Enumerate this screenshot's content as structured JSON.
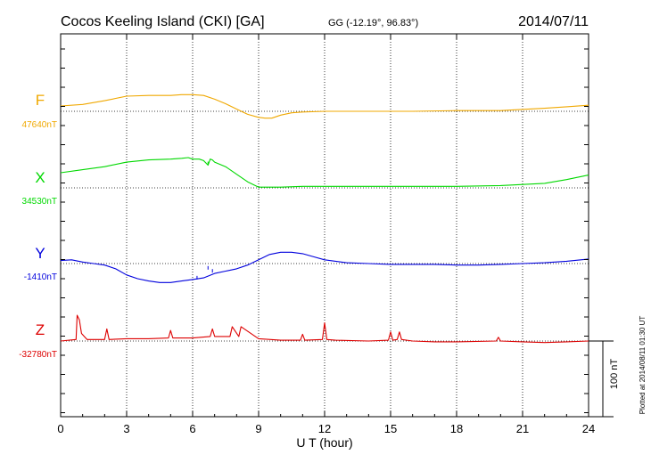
{
  "header": {
    "station": "Cocos Keeling Island (CKI)  [GA]",
    "coords": "GG (-12.19°,  96.83°)",
    "date": "2014/07/11"
  },
  "footer_note": "Plotted at 2014/08/11 01:30 UT",
  "chart_data": {
    "type": "line",
    "title": "Cocos Keeling Island (CKI)  [GA]",
    "xlabel": "U T (hour)",
    "xlim": [
      0,
      24
    ],
    "x_ticks": [
      "0",
      "3",
      "6",
      "9",
      "12",
      "15",
      "18",
      "21",
      "24"
    ],
    "grid": true,
    "scale_bar": {
      "label": "100 nT",
      "value_nT": 100
    },
    "series": [
      {
        "name": "F",
        "baseline_label": "47640nT",
        "color": "#f0a800",
        "x": [
          0,
          1,
          2,
          3,
          4,
          5,
          5.5,
          6,
          6.5,
          7,
          7.5,
          8,
          8.5,
          9,
          9.3,
          9.6,
          10,
          10.5,
          11,
          12,
          14,
          16,
          18,
          20,
          22,
          23,
          24
        ],
        "y": [
          7,
          9,
          14,
          20,
          21,
          21,
          22,
          22,
          21,
          16,
          10,
          3,
          -4,
          -8,
          -9,
          -9,
          -5,
          -2,
          -1,
          0,
          0,
          0,
          1,
          1,
          4,
          6,
          8
        ]
      },
      {
        "name": "X",
        "baseline_label": "34530nT",
        "color": "#00d800",
        "x": [
          0,
          1,
          2,
          3,
          4,
          5,
          5.5,
          5.8,
          6,
          6.3,
          6.5,
          6.7,
          6.8,
          6.9,
          7,
          7.5,
          8,
          8.5,
          9,
          9.5,
          10,
          11,
          12,
          14,
          16,
          18,
          20,
          22,
          23,
          24
        ],
        "y": [
          20,
          24,
          28,
          34,
          37,
          38,
          39,
          40,
          38,
          38,
          36,
          30,
          38,
          37,
          34,
          28,
          18,
          8,
          1,
          1,
          1,
          2,
          2,
          2,
          2,
          2,
          3,
          6,
          11,
          17
        ],
        "spikes": [
          [
            6.7,
            30
          ]
        ]
      },
      {
        "name": "Y",
        "baseline_label": "-1410nT",
        "color": "#0000dd",
        "x": [
          0,
          0.5,
          1,
          1.5,
          2,
          2.5,
          3,
          3.5,
          4,
          4.5,
          5,
          5.5,
          6,
          6.5,
          7,
          7.5,
          8,
          8.5,
          9,
          9.5,
          10,
          10.5,
          11,
          11.5,
          12,
          13,
          14,
          15,
          16,
          17,
          18,
          19,
          20,
          21,
          22,
          23,
          24
        ],
        "y": [
          4,
          5,
          2,
          0,
          -2,
          -7,
          -15,
          -20,
          -23,
          -25,
          -25,
          -23,
          -21,
          -19,
          -13,
          -10,
          -7,
          -2,
          5,
          12,
          15,
          15,
          13,
          9,
          5,
          1,
          0,
          -1,
          -1,
          -1,
          -2,
          -2,
          -1,
          0,
          1,
          3,
          6
        ],
        "spikes": [
          [
            6.2,
            -21
          ],
          [
            6.7,
            -8
          ],
          [
            6.9,
            -12
          ]
        ]
      },
      {
        "name": "Z",
        "baseline_label": "-32780nT",
        "color": "#dd0000",
        "x": [
          0,
          0.7,
          0.75,
          0.85,
          0.95,
          1.2,
          2,
          2.1,
          2.2,
          3,
          4,
          4.9,
          5,
          5.1,
          6,
          6.8,
          6.9,
          7,
          7.7,
          7.8,
          8.1,
          8.2,
          9,
          10,
          10.9,
          11,
          11.1,
          11.9,
          12,
          12.1,
          12.5,
          14,
          14.9,
          15,
          15.1,
          15.3,
          15.4,
          15.5,
          16,
          17,
          18,
          19.8,
          19.9,
          20,
          21,
          22,
          23,
          24
        ],
        "y": [
          0,
          2,
          34,
          28,
          10,
          2,
          2,
          16,
          2,
          3,
          3,
          4,
          14,
          4,
          4,
          6,
          16,
          6,
          6,
          19,
          6,
          19,
          3,
          1,
          1,
          9,
          1,
          2,
          24,
          2,
          1,
          0,
          1,
          12,
          1,
          2,
          12,
          2,
          0,
          -1,
          -1,
          0,
          5,
          0,
          -1,
          -2,
          -1,
          0
        ]
      }
    ]
  }
}
